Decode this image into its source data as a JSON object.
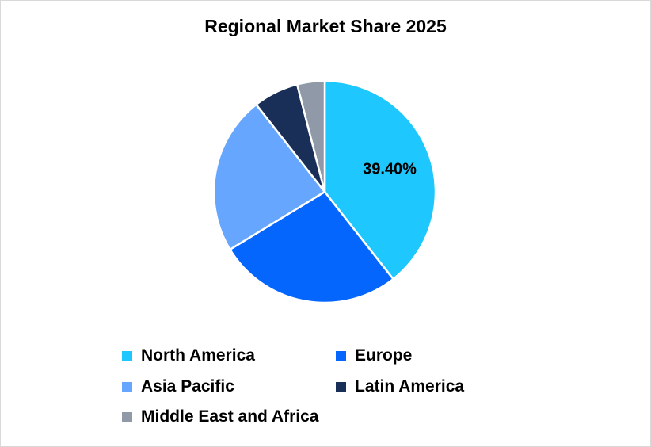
{
  "chart_data": {
    "type": "pie",
    "title": "Regional Market Share 2025",
    "categories": [
      "North America",
      "Europe",
      "Asia Pacific",
      "Latin America",
      "Middle East and Africa"
    ],
    "values": [
      39.4,
      26.9,
      23.1,
      6.6,
      4.0
    ],
    "colors": [
      "#1ec8fe",
      "#0566fe",
      "#66a6fe",
      "#1a2f58",
      "#8f99a8"
    ],
    "data_labels": [
      "39.40%",
      "",
      "",
      "",
      ""
    ],
    "start_angle_deg": 0,
    "direction": "clockwise",
    "legend_position": "bottom"
  }
}
